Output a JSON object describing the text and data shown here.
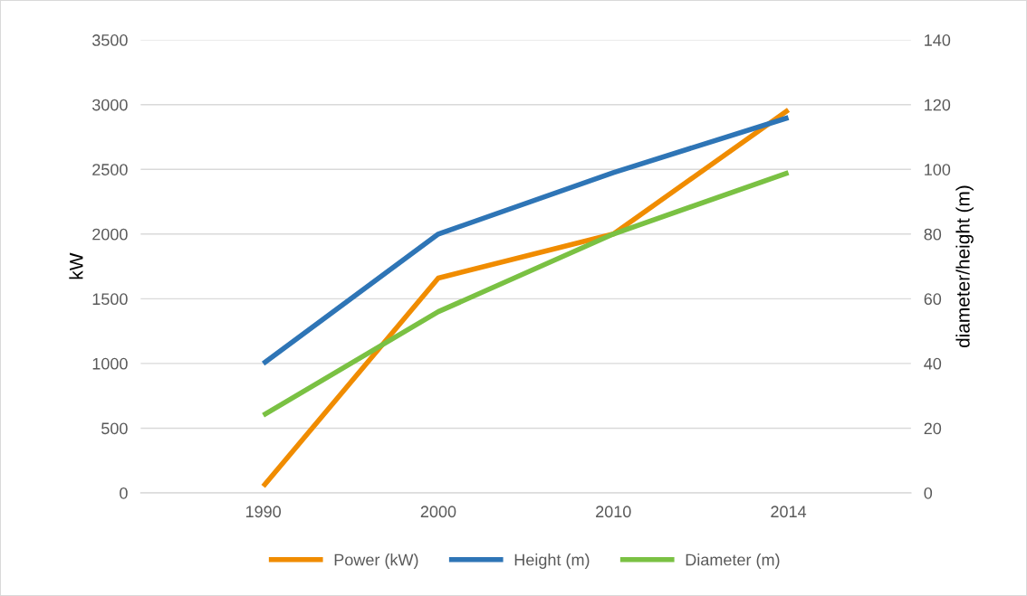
{
  "chart_data": {
    "type": "line",
    "ylabel": "kW",
    "y2label": "diameter/height (m)",
    "categories": [
      "1990",
      "2000",
      "2010",
      "2014"
    ],
    "series": [
      {
        "name": "Power (kW)",
        "color": "#f08c00",
        "values": [
          50,
          1660,
          2000,
          2960
        ]
      },
      {
        "name": "Height (m)",
        "color": "#2e75b6",
        "values": [
          40,
          80,
          99,
          116
        ],
        "axis": "y2"
      },
      {
        "name": "Diameter (m)",
        "color": "#7ac143",
        "values": [
          24,
          56,
          80,
          99
        ],
        "axis": "y2"
      }
    ],
    "ylim": [
      0,
      3500
    ],
    "yticks": [
      0,
      500,
      1000,
      1500,
      2000,
      2500,
      3000,
      3500
    ],
    "y2lim": [
      0,
      140
    ],
    "y2ticks": [
      0,
      20,
      40,
      60,
      80,
      100,
      120,
      140
    ],
    "grid": "y",
    "legend": "bottom",
    "marker": "none",
    "line_style": "solid"
  }
}
